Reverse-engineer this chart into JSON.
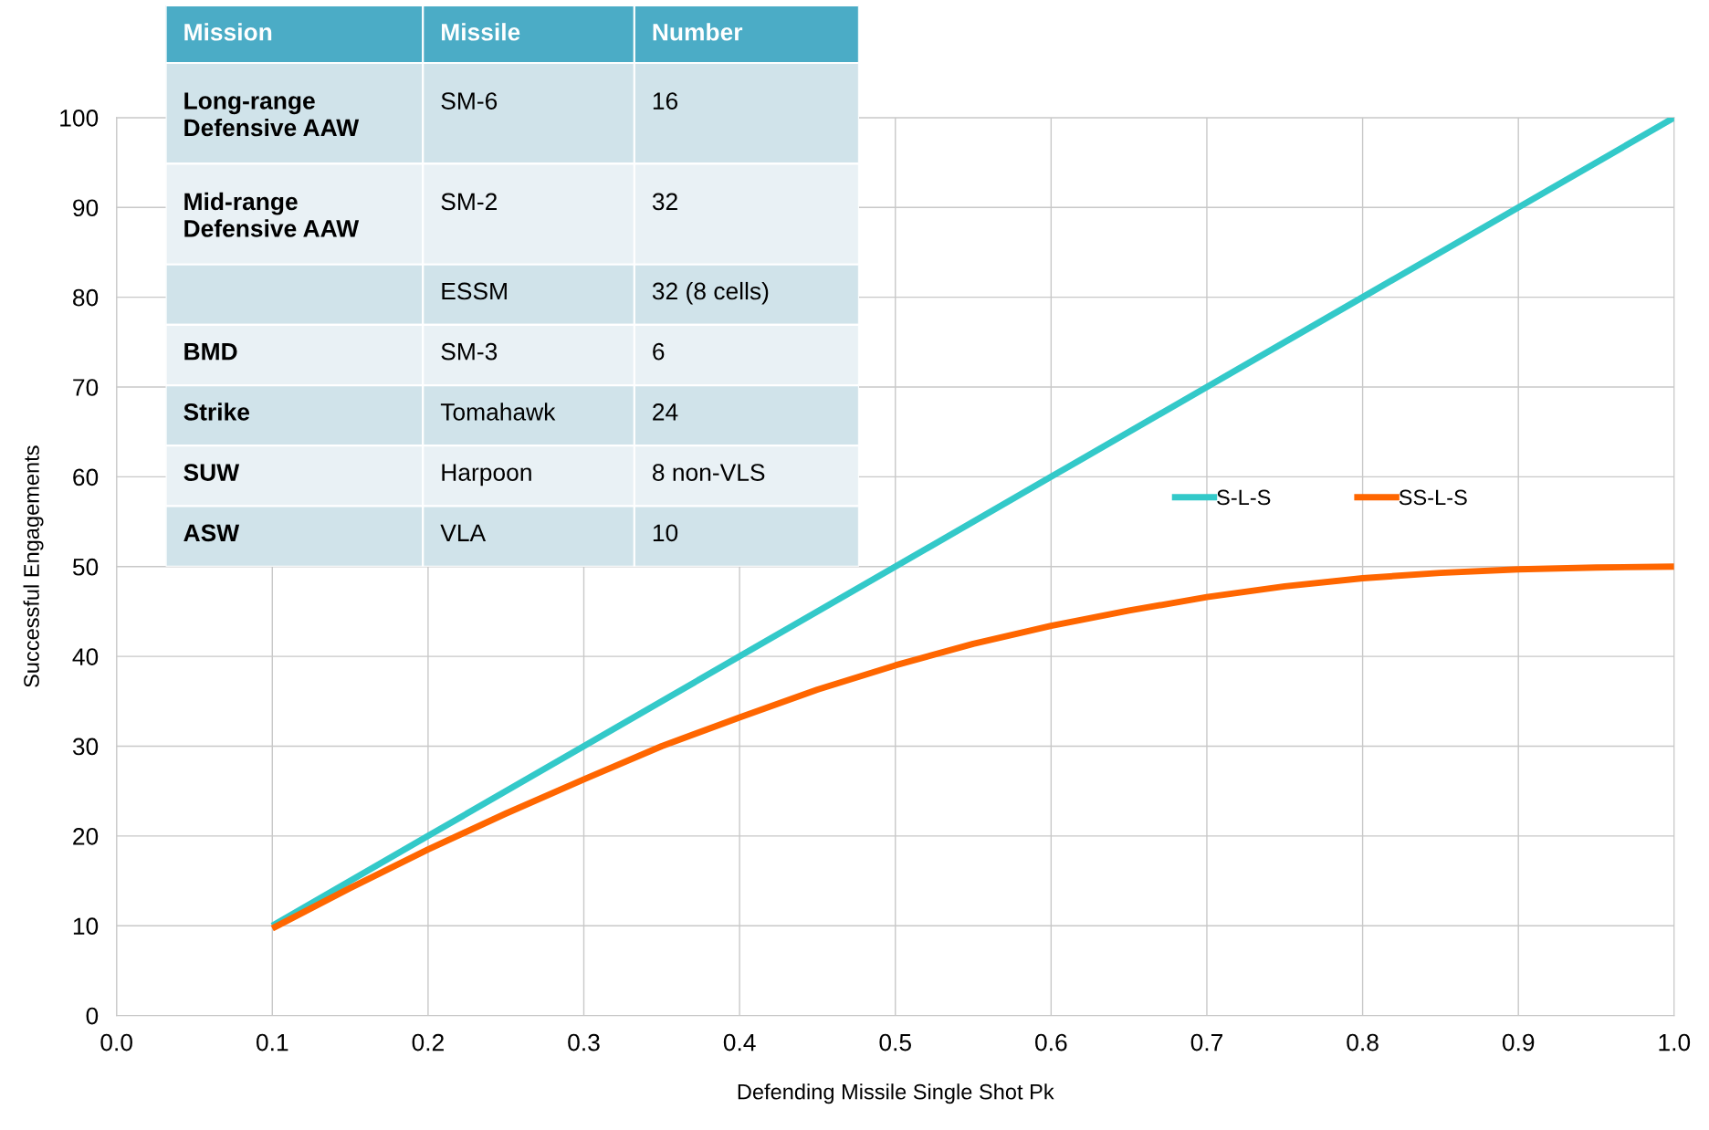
{
  "chart_data": [
    {
      "type": "line",
      "xlabel": "Defending Missile Single Shot Pk",
      "ylabel": "Successful Engagements",
      "xlim": [
        0,
        1
      ],
      "ylim": [
        0,
        100
      ],
      "xticks": [
        {
          "value": 0,
          "label": "0.0"
        },
        0.1,
        0.2,
        0.3,
        0.4,
        0.5,
        0.6,
        0.7,
        0.8,
        0.9,
        {
          "value": 1,
          "label": "1.0"
        }
      ],
      "yticks": [
        0,
        10,
        20,
        30,
        40,
        50,
        60,
        70,
        80,
        90,
        100
      ],
      "grid": true,
      "legend": "right",
      "marker": "none",
      "line_style": "solid",
      "series": [
        {
          "name": "S-L-S",
          "color": "#33c9c9",
          "x": [
            0.1,
            0.2,
            0.3,
            0.4,
            0.5,
            0.6,
            0.7,
            0.8,
            0.9,
            1.0
          ],
          "values": [
            10,
            20,
            30,
            40,
            50,
            60,
            70,
            80,
            90,
            100
          ]
        },
        {
          "name": "SS-L-S",
          "color": "#ff6600",
          "x": [
            0.1,
            0.15,
            0.2,
            0.25,
            0.3,
            0.35,
            0.4,
            0.45,
            0.5,
            0.55,
            0.6,
            0.65,
            0.7,
            0.75,
            0.8,
            0.85,
            0.9,
            0.95,
            1.0
          ],
          "values": [
            9.7,
            14.2,
            18.5,
            22.5,
            26.3,
            30,
            33.2,
            36.3,
            39,
            41.4,
            43.4,
            45.1,
            46.6,
            47.8,
            48.7,
            49.3,
            49.7,
            49.9,
            50
          ]
        }
      ]
    },
    {
      "type": "other",
      "categories": [
        "Mission",
        "Missile",
        "Number"
      ],
      "y_categories": [
        "Long-range Defensive AAW",
        "Mid-range Defensive AAW",
        null,
        "BMD",
        "Strike",
        "SUW",
        "ASW"
      ],
      "cell_labels": [
        [
          "SM-6",
          "16"
        ],
        [
          "SM-2",
          "32"
        ],
        [
          "ESSM",
          "32 (8 cells)"
        ],
        [
          "SM-3",
          "6"
        ],
        [
          "Tomahawk",
          "24"
        ],
        [
          "Harpoon",
          "8 non-VLS"
        ],
        [
          "VLA",
          "10"
        ]
      ]
    }
  ]
}
